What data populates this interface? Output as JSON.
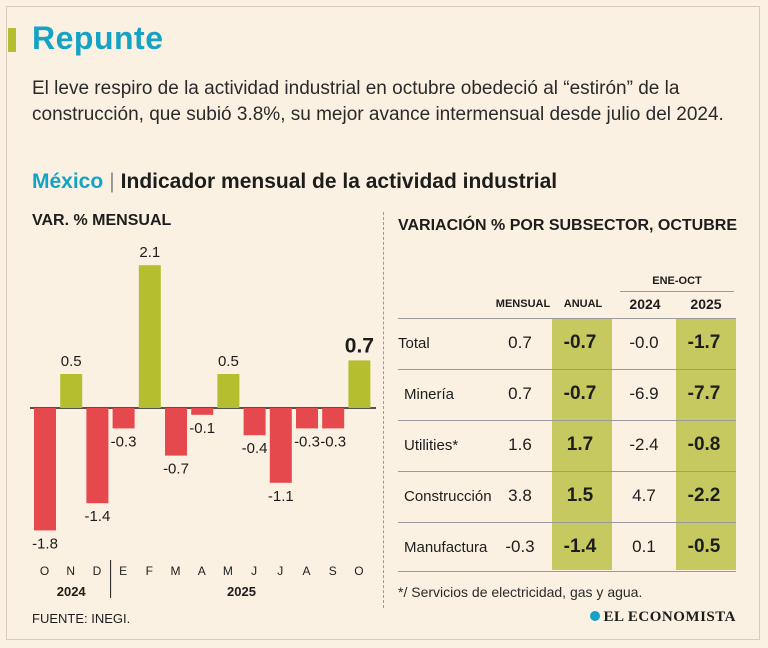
{
  "title": "Repunte",
  "subtitle": "El leve respiro de la actividad industrial en octubre obedeció al “estirón” de la construcción, que subió 3.8%, su mejor avance intermensual desde julio del 2024.",
  "chart_heading": {
    "country": "México",
    "separator": "|",
    "text": "Indicador mensual de la actividad industrial"
  },
  "left_heading": "VAR. % MENSUAL",
  "right_heading": "VARIACIÓN % POR SUBSECTOR, OCTUBRE",
  "colors": {
    "negative": "#e5484d",
    "positive": "#b5be2e",
    "accent": "#14a3c4",
    "highlight": "#c5c95f"
  },
  "chart_data": {
    "type": "bar",
    "title": "VAR. % MENSUAL",
    "categories": [
      "O",
      "N",
      "D",
      "E",
      "F",
      "M",
      "A",
      "M",
      "J",
      "J",
      "A",
      "S",
      "O"
    ],
    "values": [
      -1.8,
      0.5,
      -1.4,
      -0.3,
      2.1,
      -0.7,
      -0.1,
      0.5,
      -0.4,
      -1.1,
      -0.3,
      -0.3,
      0.7
    ],
    "labels": [
      "-1.8",
      "0.5",
      "-1.4",
      "-0.3",
      "2.1",
      "-0.7",
      "-0.1",
      "0.5",
      "-0.4",
      "-1.1",
      "-0.3",
      "-0.3",
      "0.7"
    ],
    "years": [
      {
        "label": "2024",
        "from": 0,
        "to": 2
      },
      {
        "label": "2025",
        "from": 3,
        "to": 12
      }
    ],
    "ylim": [
      -1.8,
      2.1
    ],
    "xlabel": "",
    "ylabel": ""
  },
  "table": {
    "group_label": "ENE-OCT",
    "columns": [
      "MENSUAL",
      "ANUAL",
      "2024",
      "2025"
    ],
    "rows": [
      {
        "name": "Total",
        "mensual": "0.7",
        "anual": "-0.7",
        "y2024": "-0.0",
        "y2025": "-1.7"
      },
      {
        "name": "Minería",
        "mensual": "0.7",
        "anual": "-0.7",
        "y2024": "-6.9",
        "y2025": "-7.7"
      },
      {
        "name": "Utilities*",
        "mensual": "1.6",
        "anual": "1.7",
        "y2024": "-2.4",
        "y2025": "-0.8"
      },
      {
        "name": "Construcción",
        "mensual": "3.8",
        "anual": "1.5",
        "y2024": "4.7",
        "y2025": "-2.2"
      },
      {
        "name": "Manufactura",
        "mensual": "-0.3",
        "anual": "-1.4",
        "y2024": "0.1",
        "y2025": "-0.5"
      }
    ]
  },
  "footnote": "*/ Servicios de electricidad, gas y agua.",
  "source": "FUENTE: INEGI.",
  "brand": "EL ECONOMISTA"
}
